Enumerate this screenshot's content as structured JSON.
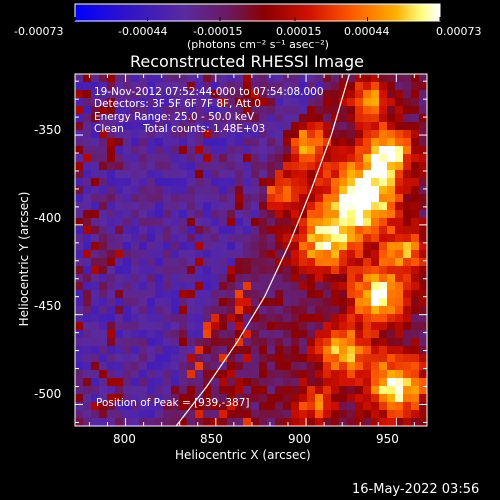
{
  "chart_data": {
    "type": "heatmap",
    "title": "Reconstructed RHESSI Image",
    "xlabel": "Heliocentric X (arcsec)",
    "ylabel": "Heliocentric Y (arcsec)",
    "xlim": [
      772,
      967
    ],
    "ylim": [
      -512,
      -316
    ],
    "x_ticks": [
      800,
      850,
      900,
      950
    ],
    "y_ticks": [
      -350,
      -400,
      -450,
      -500
    ],
    "colorbar": {
      "ticks": [
        "-0.00073",
        "-0.00044",
        "-0.00015",
        "0.00015",
        "0.00044",
        "0.00073"
      ],
      "unit_label": "(photons cm⁻² s⁻¹ asec⁻²)",
      "range": [
        -0.00073,
        0.00073
      ]
    },
    "annotations": [
      "19-Nov-2012 07:52:44.000 to 07:54:08.000",
      "Detectors: 3F 5F 6F 7F 8F, Att 0",
      "Energy Range: 25.0 - 50.0 keV",
      "Clean",
      "Total counts: 1.48E+03"
    ],
    "peak_label": "Position of Peak = [939,-387]",
    "peak": [
      939,
      -387
    ],
    "limb_curve": [
      [
        828,
        -512
      ],
      [
        845,
        -490
      ],
      [
        862,
        -465
      ],
      [
        877,
        -440
      ],
      [
        891,
        -410
      ],
      [
        903,
        -380
      ],
      [
        914,
        -350
      ],
      [
        924,
        -316
      ]
    ]
  },
  "footer": {
    "timestamp": "16-May-2022 03:56"
  },
  "colors": {
    "background": "#000000",
    "colormap": [
      "#0000ff",
      "#4a1fb0",
      "#7a2a8c",
      "#8b0000",
      "#ff3000",
      "#ff9a00",
      "#ffff80",
      "#ffffff"
    ]
  }
}
